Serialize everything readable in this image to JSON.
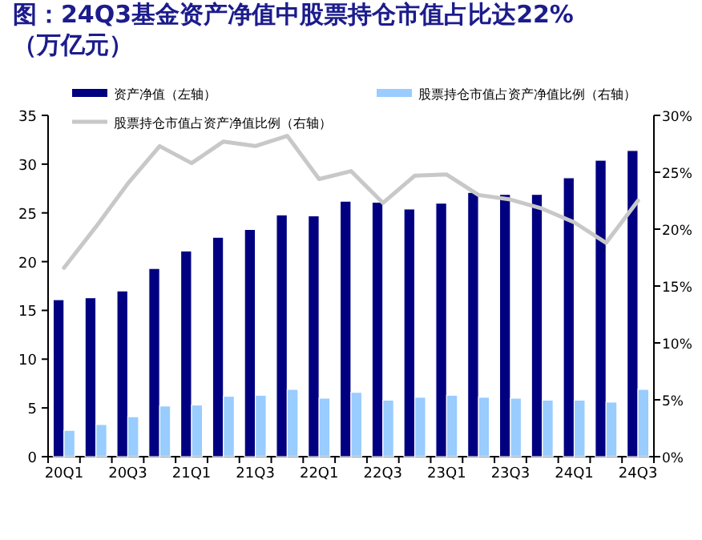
{
  "chart_data": {
    "type": "bar",
    "title": "图：24Q3基金资产净值中股票持仓市值占比达22%（万亿元）",
    "categories": [
      "20Q1",
      null,
      "20Q3",
      null,
      "21Q1",
      null,
      "21Q3",
      null,
      "22Q1",
      null,
      "22Q3",
      null,
      "23Q1",
      null,
      "23Q3",
      null,
      "24Q1",
      null,
      "24Q3"
    ],
    "series": [
      {
        "name": "资产净值（左轴）",
        "color": "#000080",
        "values": [
          16.1,
          16.3,
          17.0,
          19.3,
          21.1,
          22.5,
          23.3,
          24.8,
          24.7,
          26.2,
          26.1,
          25.4,
          26.0,
          27.1,
          26.9,
          26.9,
          28.6,
          30.4,
          31.4
        ]
      },
      {
        "name": "股票持仓市值占资产净值比例（右轴）",
        "color": "#99ccff",
        "values": [
          2.7,
          3.3,
          4.1,
          5.2,
          5.3,
          6.2,
          6.3,
          6.9,
          6.0,
          6.6,
          5.8,
          6.1,
          6.3,
          6.1,
          6.0,
          5.8,
          5.8,
          5.6,
          6.9
        ]
      },
      {
        "name": "股票持仓市值占资产净值比例（右轴）",
        "type": "line",
        "axis": "y2",
        "color": "#c8c8c8",
        "values": [
          16.6,
          20.2,
          24.0,
          27.3,
          25.8,
          27.7,
          27.3,
          28.2,
          24.4,
          25.1,
          22.3,
          24.7,
          24.8,
          23.0,
          22.6,
          21.8,
          20.6,
          18.8,
          22.5
        ]
      }
    ],
    "ylim": [
      0,
      35
    ],
    "yticks": [
      0,
      5,
      10,
      15,
      20,
      25,
      30,
      35
    ],
    "y2lim": [
      0,
      30
    ],
    "y2ticks": [
      {
        "value": 0,
        "label": "0%"
      },
      {
        "value": 5,
        "label": "5%"
      },
      {
        "value": 10,
        "label": "10%"
      },
      {
        "value": 15,
        "label": "15%"
      },
      {
        "value": 20,
        "label": "20%"
      },
      {
        "value": 25,
        "label": "25%"
      },
      {
        "value": 30,
        "label": "30%"
      }
    ],
    "legend": "top"
  }
}
